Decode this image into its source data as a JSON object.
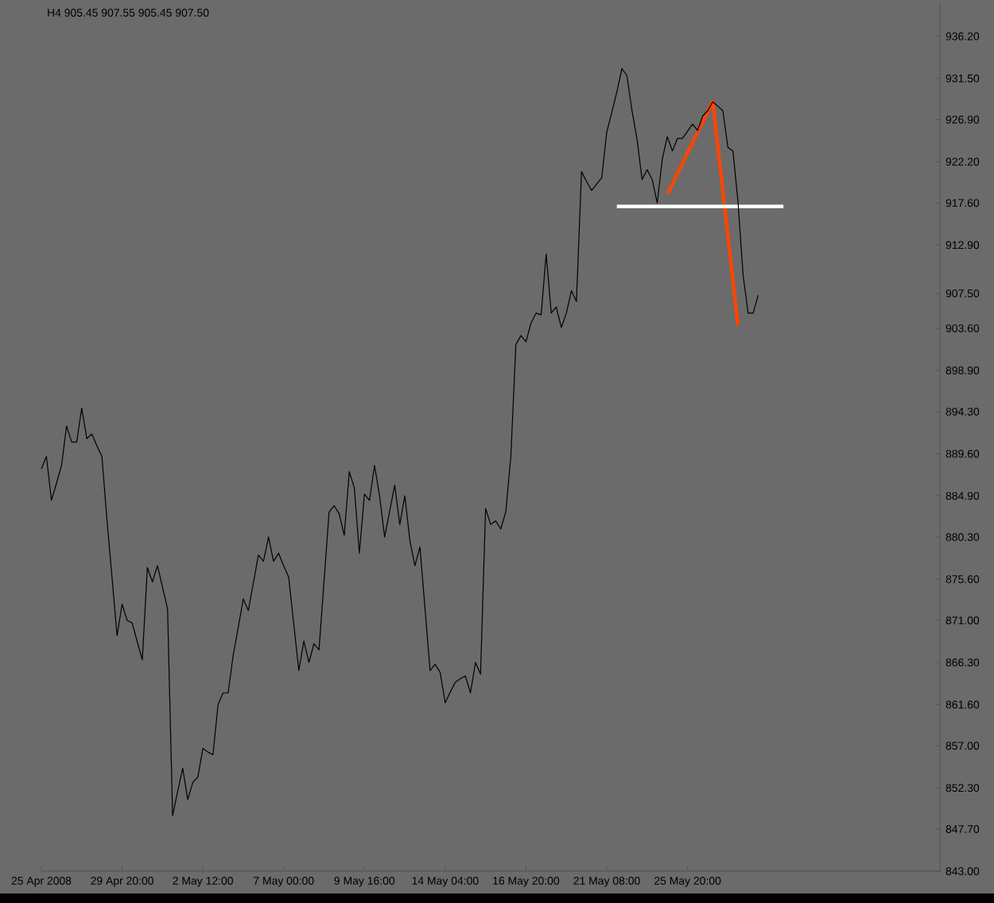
{
  "chart_data": {
    "type": "line",
    "title": "H4  905.45 907.55 905.45 907.50",
    "categories": [
      "25 Apr 2008",
      null,
      null,
      null,
      null,
      null,
      null,
      null,
      null,
      null,
      null,
      null,
      null,
      null,
      null,
      null,
      "29 Apr 20:00",
      null,
      null,
      null,
      null,
      null,
      null,
      null,
      null,
      null,
      null,
      null,
      null,
      null,
      null,
      null,
      "2 May 12:00",
      null,
      null,
      null,
      null,
      null,
      null,
      null,
      null,
      null,
      null,
      null,
      null,
      null,
      null,
      null,
      "7 May 00:00",
      null,
      null,
      null,
      null,
      null,
      null,
      null,
      null,
      null,
      null,
      null,
      null,
      null,
      null,
      null,
      "9 May 16:00",
      null,
      null,
      null,
      null,
      null,
      null,
      null,
      null,
      null,
      null,
      null,
      null,
      null,
      null,
      null,
      "14 May 04:00",
      null,
      null,
      null,
      null,
      null,
      null,
      null,
      null,
      null,
      null,
      null,
      null,
      null,
      null,
      null,
      "16 May 20:00",
      null,
      null,
      null,
      null,
      null,
      null,
      null,
      null,
      null,
      null,
      null,
      null,
      null,
      null,
      null,
      "21 May 08:00",
      null,
      null,
      null,
      null,
      null,
      null,
      null,
      null,
      null,
      null,
      null,
      null,
      null,
      null,
      null,
      "25 May 20:00",
      null,
      null,
      null,
      null,
      null,
      null,
      null,
      null,
      null,
      null,
      null,
      null,
      null,
      null,
      null,
      null,
      null,
      null,
      null,
      null,
      null,
      null,
      null,
      null,
      null,
      null,
      null,
      null,
      null,
      null,
      null,
      null,
      null,
      null,
      null,
      null,
      null,
      null,
      null,
      null,
      null,
      null,
      null,
      null,
      null,
      null,
      null,
      null,
      null,
      null
    ],
    "series": [
      {
        "color": "#000000",
        "values": [
          887.9,
          889.3,
          884.4,
          886.3,
          888.3,
          892.7,
          890.9,
          890.9,
          894.7,
          891.3,
          891.8,
          890.5,
          889.3,
          882.2,
          875.8,
          869.3,
          872.8,
          871.0,
          870.7,
          868.6,
          866.6,
          876.9,
          875.3,
          877.1,
          874.7,
          872.3,
          849.2,
          851.9,
          854.5,
          851.0,
          852.9,
          853.5,
          856.7,
          856.3,
          856.0,
          861.6,
          862.9,
          862.9,
          867.1,
          870.2,
          873.4,
          872.1,
          875.2,
          878.3,
          877.6,
          880.3,
          877.6,
          878.5,
          877.1,
          875.8,
          870.6,
          865.4,
          868.7,
          866.3,
          868.4,
          867.7,
          875.4,
          883.1,
          883.8,
          882.9,
          880.5,
          887.6,
          885.8,
          878.5,
          885.1,
          884.4,
          888.3,
          884.9,
          880.3,
          883.2,
          886.1,
          881.7,
          884.9,
          879.9,
          877.1,
          879.2,
          872.3,
          865.4,
          866.1,
          865.2,
          861.8,
          863.0,
          864.1,
          864.5,
          864.8,
          862.9,
          866.3,
          865.0,
          883.5,
          881.7,
          882.1,
          881.2,
          883.1,
          889.3,
          901.8,
          902.8,
          902.1,
          904.2,
          905.3,
          905.1,
          911.9,
          905.3,
          906.0,
          903.7,
          905.3,
          907.8,
          906.6,
          921.1,
          920.0,
          919.0,
          919.7,
          920.4,
          925.5,
          927.7,
          930.0,
          932.6,
          931.8,
          927.9,
          924.7,
          920.2,
          921.3,
          920.2,
          917.6,
          922.5,
          925.0,
          923.4,
          924.8,
          924.8,
          925.6,
          926.4,
          925.7,
          927.3,
          927.9,
          928.9,
          928.4,
          927.9,
          923.8,
          923.4,
          917.7,
          909.6,
          905.3,
          905.3,
          907.3,
          null,
          null,
          null,
          null,
          null,
          null,
          null,
          null,
          null,
          null,
          null,
          null,
          null,
          null,
          null,
          null,
          null,
          null,
          null,
          null,
          null,
          null,
          null,
          null,
          null,
          null,
          null,
          null,
          null,
          null,
          null,
          null,
          null,
          null,
          null,
          null
        ]
      },
      {
        "color": "#ff4500",
        "values": [
          null,
          null,
          null,
          null,
          null,
          null,
          null,
          null,
          null,
          null,
          null,
          null,
          null,
          null,
          null,
          null,
          null,
          null,
          null,
          null,
          null,
          null,
          null,
          null,
          null,
          null,
          null,
          null,
          null,
          null,
          null,
          null,
          null,
          null,
          null,
          null,
          null,
          null,
          null,
          null,
          null,
          null,
          null,
          null,
          null,
          null,
          null,
          null,
          null,
          null,
          null,
          null,
          null,
          null,
          null,
          null,
          null,
          null,
          null,
          null,
          null,
          null,
          null,
          null,
          null,
          null,
          null,
          null,
          null,
          null,
          null,
          null,
          null,
          null,
          null,
          null,
          null,
          null,
          null,
          null,
          null,
          null,
          null,
          null,
          null,
          null,
          null,
          null,
          null,
          null,
          null,
          null,
          null,
          null,
          null,
          null,
          null,
          null,
          null,
          null,
          null,
          null,
          null,
          null,
          null,
          null,
          null,
          null,
          null,
          null,
          null,
          null,
          null,
          null,
          null,
          null,
          null,
          null,
          null,
          null,
          null,
          null,
          null,
          null,
          918.6,
          919.7,
          920.9,
          922.0,
          923.2,
          924.3,
          925.5,
          926.6,
          927.8,
          928.9,
          923.9,
          918.9,
          913.9,
          908.9,
          903.9,
          null,
          null,
          null,
          null,
          null,
          null,
          null,
          null,
          null,
          null,
          null,
          null,
          null,
          null,
          null,
          null,
          null,
          null,
          null,
          null,
          null,
          null,
          null,
          null,
          null,
          null,
          null,
          null,
          null,
          null,
          null,
          null,
          null,
          null,
          null,
          null,
          null,
          null,
          null,
          null
        ]
      },
      {
        "color": "#ffffff",
        "values": [
          null,
          null,
          null,
          null,
          null,
          null,
          null,
          null,
          null,
          null,
          null,
          null,
          null,
          null,
          null,
          null,
          null,
          null,
          null,
          null,
          null,
          null,
          null,
          null,
          null,
          null,
          null,
          null,
          null,
          null,
          null,
          null,
          null,
          null,
          null,
          null,
          null,
          null,
          null,
          null,
          null,
          null,
          null,
          null,
          null,
          null,
          null,
          null,
          null,
          null,
          null,
          null,
          null,
          null,
          null,
          null,
          null,
          null,
          null,
          null,
          null,
          null,
          null,
          null,
          null,
          null,
          null,
          null,
          null,
          null,
          null,
          null,
          null,
          null,
          null,
          null,
          null,
          null,
          null,
          null,
          null,
          null,
          null,
          null,
          null,
          null,
          null,
          null,
          null,
          null,
          null,
          null,
          null,
          null,
          null,
          null,
          null,
          null,
          null,
          null,
          null,
          null,
          null,
          null,
          null,
          null,
          null,
          null,
          null,
          null,
          null,
          null,
          null,
          null,
          917.2,
          917.2,
          917.2,
          917.2,
          917.2,
          917.2,
          917.2,
          917.2,
          917.2,
          917.2,
          917.2,
          917.2,
          917.2,
          917.2,
          917.2,
          917.2,
          917.2,
          917.2,
          917.2,
          917.2,
          917.2,
          917.2,
          917.2,
          917.2,
          917.2,
          917.2,
          917.2,
          917.2,
          917.2,
          917.2,
          917.2,
          917.2,
          917.2,
          917.2,
          null,
          null,
          null,
          null,
          null,
          null,
          null,
          null,
          null,
          null,
          null,
          null,
          null,
          null,
          null,
          null,
          null,
          null,
          null,
          null,
          null,
          null,
          null,
          null,
          null,
          null,
          null,
          null,
          null,
          null,
          null
        ]
      }
    ],
    "ylim": [
      843,
      939.9
    ],
    "yticks": [
      {
        "value": 936.2,
        "label": "936.20"
      },
      {
        "value": 931.5,
        "label": "931.50"
      },
      {
        "value": 926.9,
        "label": "926.90"
      },
      {
        "value": 922.2,
        "label": "922.20"
      },
      {
        "value": 917.6,
        "label": "917.60"
      },
      {
        "value": 912.9,
        "label": "912.90"
      },
      {
        "value": 907.5,
        "label": "907.50"
      },
      {
        "value": 903.6,
        "label": "903.60"
      },
      {
        "value": 898.9,
        "label": "898.90"
      },
      {
        "value": 894.3,
        "label": "894.30"
      },
      {
        "value": 889.6,
        "label": "889.60"
      },
      {
        "value": 884.9,
        "label": "884.90"
      },
      {
        "value": 880.3,
        "label": "880.30"
      },
      {
        "value": 875.6,
        "label": "875.60"
      },
      {
        "value": 871.0,
        "label": "871.00"
      },
      {
        "value": 866.3,
        "label": "866.30"
      },
      {
        "value": 861.6,
        "label": "861.60"
      },
      {
        "value": 857.0,
        "label": "857.00"
      },
      {
        "value": 852.3,
        "label": "852.30"
      },
      {
        "value": 847.7,
        "label": "847.70"
      },
      {
        "value": 843.0,
        "label": "843.00"
      }
    ],
    "grid": false
  }
}
